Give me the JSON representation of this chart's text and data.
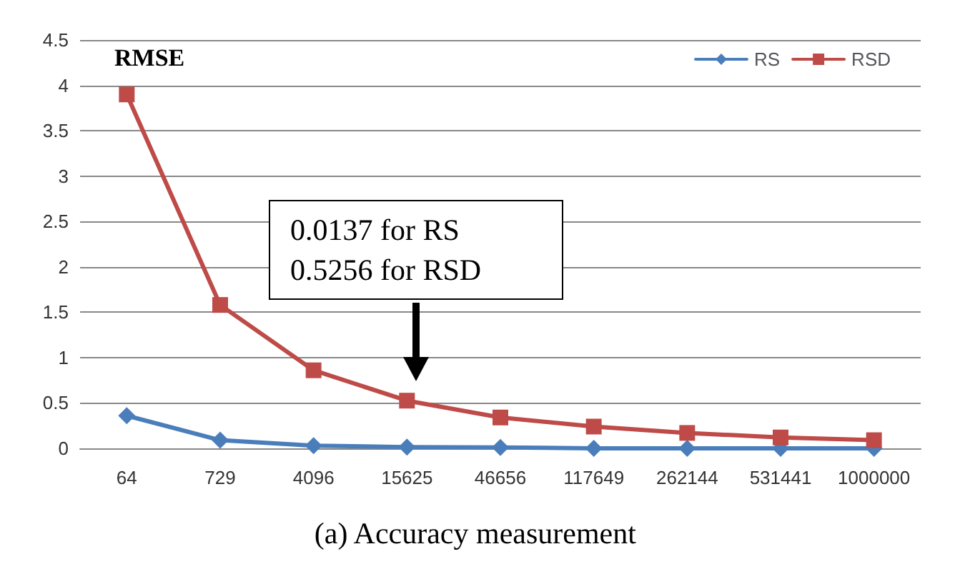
{
  "chart_data": {
    "type": "line",
    "ylabel": "RMSE",
    "categories": [
      "64",
      "729",
      "4096",
      "15625",
      "46656",
      "117649",
      "262144",
      "531441",
      "1000000"
    ],
    "series": [
      {
        "name": "RS",
        "color": "#4a7ebb",
        "marker": "diamond",
        "values": [
          0.36,
          0.09,
          0.03,
          0.0137,
          0.01,
          0,
          0,
          0,
          0
        ]
      },
      {
        "name": "RSD",
        "color": "#be4b48",
        "marker": "square",
        "values": [
          3.9,
          1.58,
          0.86,
          0.5256,
          0.34,
          0.24,
          0.17,
          0.12,
          0.09
        ]
      }
    ],
    "ylim": [
      0,
      4.5
    ],
    "yticks": [
      0,
      0.5,
      1,
      1.5,
      2,
      2.5,
      3,
      3.5,
      4,
      4.5
    ],
    "grid": "y",
    "legend": "top right",
    "annotations": [
      "0.0137 for RS\n0.5256 for RSD",
      "(a) Accuracy measurement"
    ]
  }
}
